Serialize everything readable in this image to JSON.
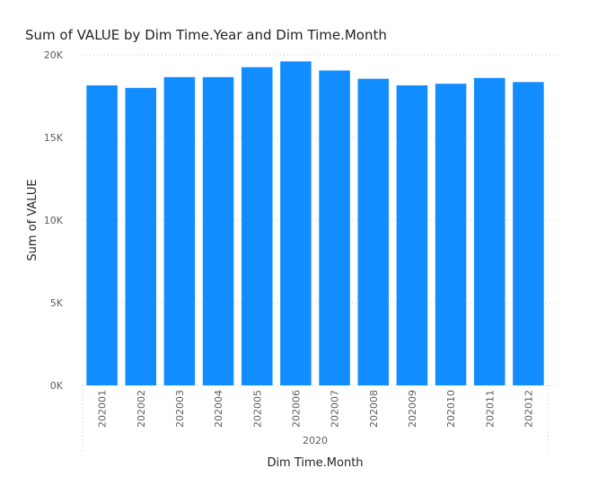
{
  "chart_data": {
    "type": "bar",
    "title": "Sum of VALUE by Dim Time.Year and Dim Time.Month",
    "xlabel": "Dim Time.Month",
    "ylabel": "Sum of VALUE",
    "group_label": "2020",
    "categories": [
      "202001",
      "202002",
      "202003",
      "202004",
      "202005",
      "202006",
      "202007",
      "202008",
      "202009",
      "202010",
      "202011",
      "202012"
    ],
    "series": [
      {
        "values": [
          18150,
          18000,
          18650,
          18650,
          19250,
          19600,
          19050,
          18550,
          18150,
          18250,
          18600,
          18350
        ]
      }
    ],
    "ylim": [
      0,
      20000
    ],
    "yticks": [
      0,
      5000,
      10000,
      15000,
      20000
    ],
    "ytick_labels": [
      "0K",
      "5K",
      "10K",
      "15K",
      "20K"
    ],
    "grid": true,
    "legend": "none",
    "bar_color": "#118DFF"
  }
}
